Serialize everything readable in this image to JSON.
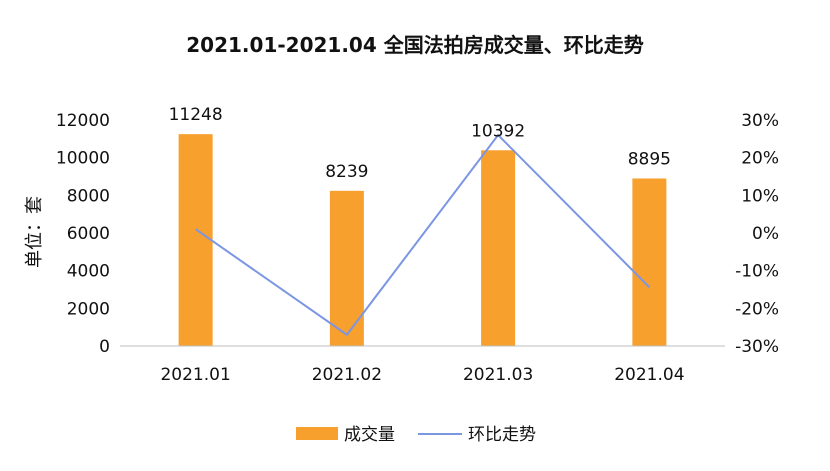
{
  "chart_data": {
    "type": "bar",
    "title": "2021.01-2021.04 全国法拍房成交量、环比走势",
    "ylabel": "单位：套",
    "categories": [
      "2021.01",
      "2021.02",
      "2021.03",
      "2021.04"
    ],
    "ylim": [
      0,
      12000
    ],
    "y_ticks": [
      "0",
      "2000",
      "4000",
      "6000",
      "8000",
      "10000",
      "12000"
    ],
    "y2lim": [
      -30,
      30
    ],
    "y2_ticks": [
      "-30%",
      "-20%",
      "-10%",
      "0%",
      "10%",
      "20%",
      "30%"
    ],
    "series": [
      {
        "name": "成交量",
        "type": "bar",
        "axis": "left",
        "values": [
          11248,
          8239,
          10392,
          8895
        ],
        "data_labels": [
          "11248",
          "8239",
          "10392",
          "8895"
        ]
      },
      {
        "name": "环比走势",
        "type": "line",
        "axis": "right",
        "values": [
          1,
          -27,
          26,
          -14.4
        ]
      }
    ],
    "legend_position": "bottom",
    "grid": false,
    "colors": {
      "bar": "#f7a02e",
      "line": "#7b96e3",
      "axis": "#bfbfbf",
      "text": "#111111"
    }
  }
}
